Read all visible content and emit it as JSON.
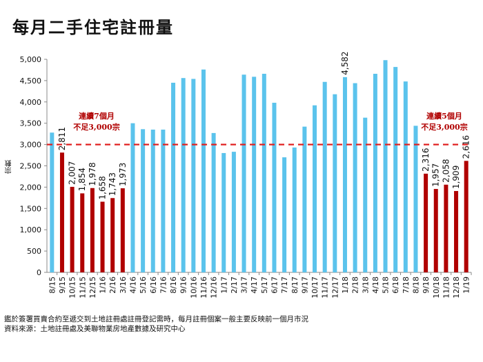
{
  "chart_data": {
    "type": "bar",
    "title": "每月二手住宅註冊量",
    "ylabel": "宗數",
    "xlabel": "",
    "ylim": [
      0,
      5000
    ],
    "yticks": [
      "0",
      "500",
      "1,000",
      "1,500",
      "2,000",
      "2,500",
      "3,000",
      "3,500",
      "4,000",
      "4,500",
      "5,000"
    ],
    "categories": [
      "8/15",
      "9/15",
      "10/15",
      "11/15",
      "12/15",
      "1/16",
      "2/16",
      "3/16",
      "4/16",
      "5/16",
      "6/16",
      "7/16",
      "8/16",
      "9/16",
      "10/16",
      "11/16",
      "12/16",
      "1/17",
      "2/17",
      "3/17",
      "4/17",
      "5/17",
      "6/17",
      "7/17",
      "8/17",
      "9/17",
      "10/17",
      "11/17",
      "12/17",
      "1/18",
      "2/18",
      "3/18",
      "4/18",
      "5/18",
      "6/18",
      "7/18",
      "8/18",
      "9/18",
      "10/18",
      "11/18",
      "12/18",
      "1/19"
    ],
    "values": [
      3280,
      2811,
      2007,
      1854,
      1978,
      1658,
      1743,
      1973,
      3500,
      3360,
      3350,
      3350,
      4450,
      4560,
      4540,
      4760,
      3270,
      2800,
      2830,
      4640,
      4590,
      4660,
      3980,
      2700,
      2930,
      3420,
      3920,
      4470,
      4180,
      4582,
      4440,
      3630,
      4660,
      4980,
      4820,
      4480,
      3440,
      2316,
      1957,
      2058,
      1909,
      2616
    ],
    "labels": {
      "1": "2,811",
      "2": "2,007",
      "3": "1,854",
      "4": "1,978",
      "5": "1,658",
      "6": "1,743",
      "7": "1,973",
      "29": "4,582",
      "37": "2,316",
      "38": "1,957",
      "39": "2,058",
      "40": "1,909",
      "41": "2,616"
    },
    "highlight": [
      1,
      2,
      3,
      4,
      5,
      6,
      7,
      37,
      38,
      39,
      40,
      41
    ],
    "reference_line": {
      "value": 3000,
      "style": "dashed",
      "color": "#e02020"
    },
    "colors": {
      "normal": "#5bc3ec",
      "highlight": "#b00000"
    },
    "annotations": [
      {
        "lines": [
          "連續7個月",
          "不足3,000宗"
        ]
      },
      {
        "lines": [
          "連續5個月",
          "不足3,000宗"
        ]
      }
    ],
    "grid": false
  },
  "footnotes": [
    "鑑於簽署買賣合約至遞交到土地註冊處註冊登記需時，每月註冊個案一般主要反映前一個月市況",
    "資料來源：土地註冊處及美聯物業房地產數據及研究中心"
  ]
}
